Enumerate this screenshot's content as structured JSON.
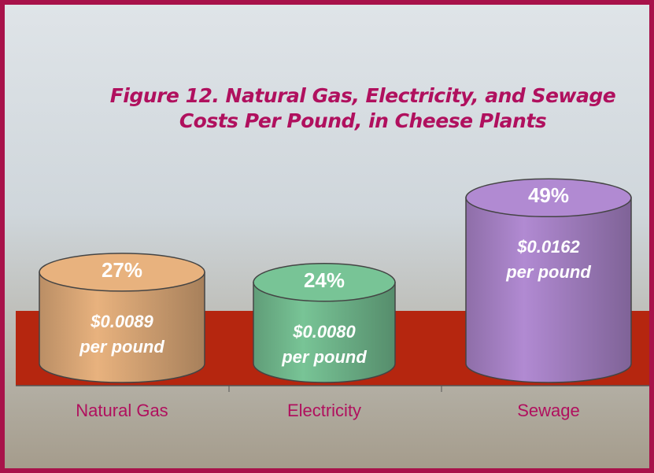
{
  "chart_data": {
    "type": "cylinder",
    "title": "Figure 12. Natural Gas, Electricity, and Sewage Costs Per Pound, in Cheese Plants",
    "categories": [
      "Natural Gas",
      "Electricity",
      "Sewage"
    ],
    "values": [
      27,
      24,
      49
    ],
    "value_labels": [
      "27%",
      "24%",
      "49%"
    ],
    "cost_labels": [
      "$0.0089 per pound",
      "$0.0080 per pound",
      "$0.0162 per pound"
    ],
    "colors": [
      "#e8b27e",
      "#78c496",
      "#b18ad2"
    ]
  }
}
